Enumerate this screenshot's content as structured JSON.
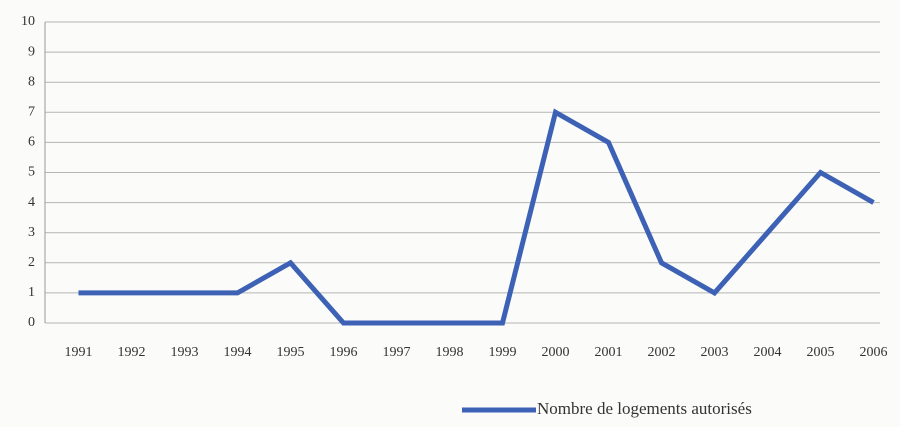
{
  "chart_data": {
    "type": "line",
    "categories": [
      "1991",
      "1992",
      "1993",
      "1994",
      "1995",
      "1996",
      "1997",
      "1998",
      "1999",
      "2000",
      "2001",
      "2002",
      "2003",
      "2004",
      "2005",
      "2006"
    ],
    "series": [
      {
        "name": "Nombre de logements autorisés",
        "color": "#3d62b5",
        "values": [
          1,
          1,
          1,
          1,
          2,
          0,
          0,
          0,
          0,
          7,
          6,
          2,
          1,
          3,
          5,
          4
        ]
      }
    ],
    "ylim": [
      0,
      10
    ],
    "yticks": [
      0,
      1,
      2,
      3,
      4,
      5,
      6,
      7,
      8,
      9,
      10
    ],
    "grid": true,
    "legend": "bottom-right"
  }
}
